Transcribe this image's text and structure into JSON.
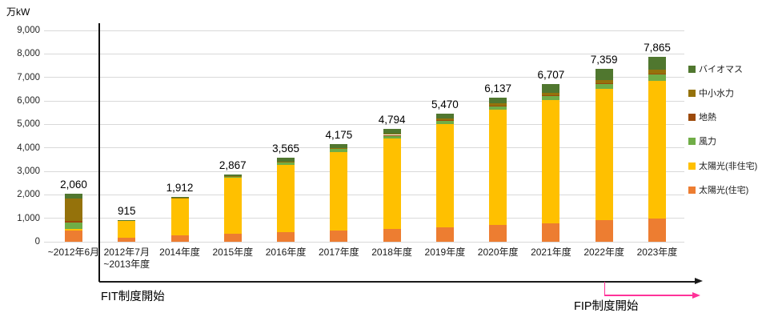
{
  "header": {
    "unit_label": "万kW"
  },
  "annotations": {
    "fit_label": "FIT制度開始",
    "fip_label": "FIP制度開始",
    "fip_line_color": "#FF3399",
    "axis_color": "#1a1a1a"
  },
  "chart_data": {
    "type": "bar",
    "stacked": true,
    "value_unit": "万kW",
    "title": "",
    "xlabel": "",
    "ylabel": "万kW",
    "ylim": [
      0,
      9000
    ],
    "ytick_step": 1000,
    "ytick_labels": [
      "0",
      "1,000",
      "2,000",
      "3,000",
      "4,000",
      "5,000",
      "6,000",
      "7,000",
      "8,000",
      "9,000"
    ],
    "grid": true,
    "gridline_color": "#d9d9d9",
    "legend_position": "right",
    "categories": [
      [
        "~2012年6月"
      ],
      [
        "2012年7月",
        "~2013年度"
      ],
      [
        "2014年度"
      ],
      [
        "2015年度"
      ],
      [
        "2016年度"
      ],
      [
        "2017年度"
      ],
      [
        "2018年度"
      ],
      [
        "2019年度"
      ],
      [
        "2020年度"
      ],
      [
        "2021年度"
      ],
      [
        "2022年度"
      ],
      [
        "2023年度"
      ]
    ],
    "totals": [
      2060,
      915,
      1912,
      2867,
      3565,
      4175,
      4794,
      5470,
      6137,
      6707,
      7359,
      7865
    ],
    "total_labels": [
      "2,060",
      "915",
      "1,912",
      "2,867",
      "3,565",
      "4,175",
      "4,794",
      "5,470",
      "6,137",
      "6,707",
      "7,359",
      "7,865"
    ],
    "series": [
      {
        "name": "太陽光(住宅)",
        "color": "#ED7D31",
        "values": [
          470,
          170,
          285,
          340,
          420,
          480,
          560,
          620,
          700,
          790,
          920,
          990
        ]
      },
      {
        "name": "太陽光(非住宅)",
        "color": "#FFC000",
        "values": [
          90,
          721,
          1561,
          2384,
          2858,
          3350,
          3848,
          4393,
          4917,
          5235,
          5590,
          5860
        ]
      },
      {
        "name": "風力",
        "color": "#70AD47",
        "values": [
          260,
          15,
          22,
          40,
          90,
          120,
          140,
          160,
          175,
          195,
          235,
          315
        ]
      },
      {
        "name": "地熱",
        "color": "#9C4A0B",
        "values": [
          50,
          1,
          1,
          2,
          2,
          2,
          3,
          4,
          4,
          5,
          5,
          6
        ]
      },
      {
        "name": "中小水力",
        "color": "#95720B",
        "values": [
          960,
          3,
          8,
          21,
          35,
          43,
          53,
          63,
          91,
          112,
          139,
          154
        ]
      },
      {
        "name": "バイオマス",
        "color": "#50772F",
        "values": [
          230,
          5,
          35,
          80,
          160,
          180,
          190,
          230,
          250,
          370,
          470,
          540
        ]
      }
    ],
    "legend": [
      "バイオマス",
      "中小水力",
      "地熱",
      "風力",
      "太陽光(非住宅)",
      "太陽光(住宅)"
    ]
  }
}
